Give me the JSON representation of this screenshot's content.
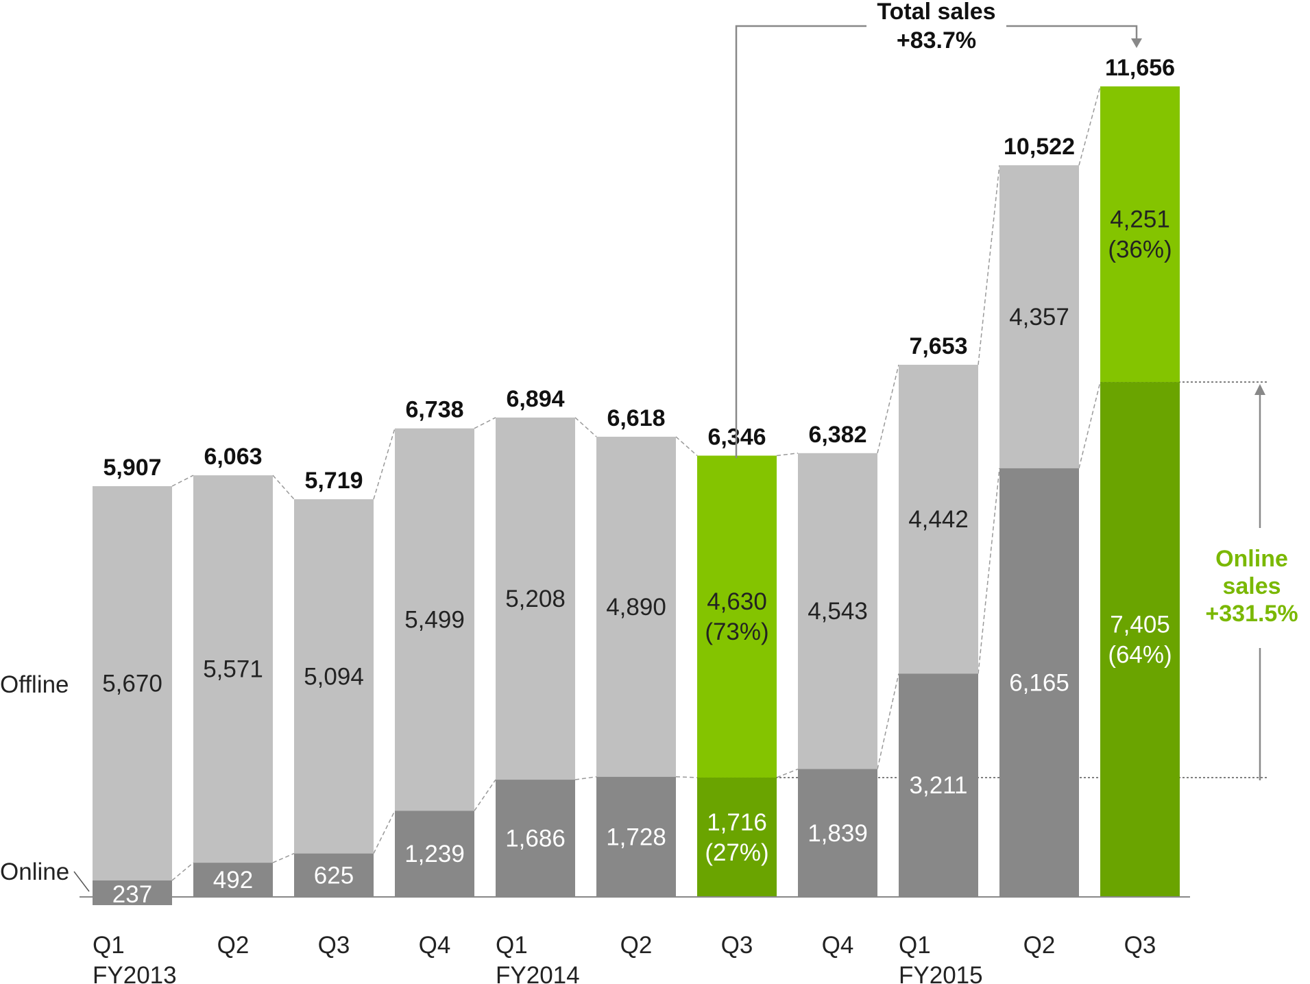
{
  "chart_data": {
    "type": "bar",
    "stacked": true,
    "categories": [
      "Q1",
      "Q2",
      "Q3",
      "Q4",
      "Q1",
      "Q2",
      "Q3",
      "Q4",
      "Q1",
      "Q2",
      "Q3"
    ],
    "year_labels": [
      "FY2013",
      "",
      "",
      "",
      "FY2014",
      "",
      "",
      "",
      "FY2015",
      "",
      ""
    ],
    "series": [
      {
        "name": "Online",
        "values": [
          237,
          492,
          625,
          1239,
          1686,
          1728,
          1716,
          1839,
          3211,
          6165,
          7405
        ]
      },
      {
        "name": "Offline",
        "values": [
          5670,
          5571,
          5094,
          5499,
          5208,
          4890,
          4630,
          4543,
          4442,
          4357,
          4251
        ]
      }
    ],
    "online_labels": [
      "237",
      "492",
      "625",
      "1,239",
      "1,686",
      "1,728",
      "1,716\n(27%)",
      "1,839",
      "3,211",
      "6,165",
      "7,405\n(64%)"
    ],
    "offline_labels": [
      "5,670",
      "5,571",
      "5,094",
      "5,499",
      "5,208",
      "4,890",
      "4,630\n(73%)",
      "4,543",
      "4,442",
      "4,357",
      "4,251\n(36%)"
    ],
    "totals": [
      5907,
      6063,
      5719,
      6738,
      6894,
      6618,
      6346,
      6382,
      7653,
      10522,
      11656
    ],
    "total_labels": [
      "5,907",
      "6,063",
      "5,719",
      "6,738",
      "6,894",
      "6,618",
      "6,346",
      "6,382",
      "7,653",
      "10,522",
      "11,656"
    ],
    "highlighted_bars": [
      6,
      10
    ],
    "ylim": [
      0,
      11656
    ],
    "grid": false,
    "colors": {
      "offline": "#c0c0c0",
      "online": "#888888",
      "highlight_offline": "#84c400",
      "highlight_online": "#6aa400",
      "annotation_green": "#7ab800"
    }
  },
  "annotations": {
    "total_sales": {
      "line1": "Total sales",
      "line2": "+83.7%"
    },
    "online_sales": {
      "line1": "Online",
      "line2": "sales",
      "line3": "+331.5%"
    }
  },
  "legend_labels": {
    "offline": "Offline",
    "online": "Online"
  }
}
